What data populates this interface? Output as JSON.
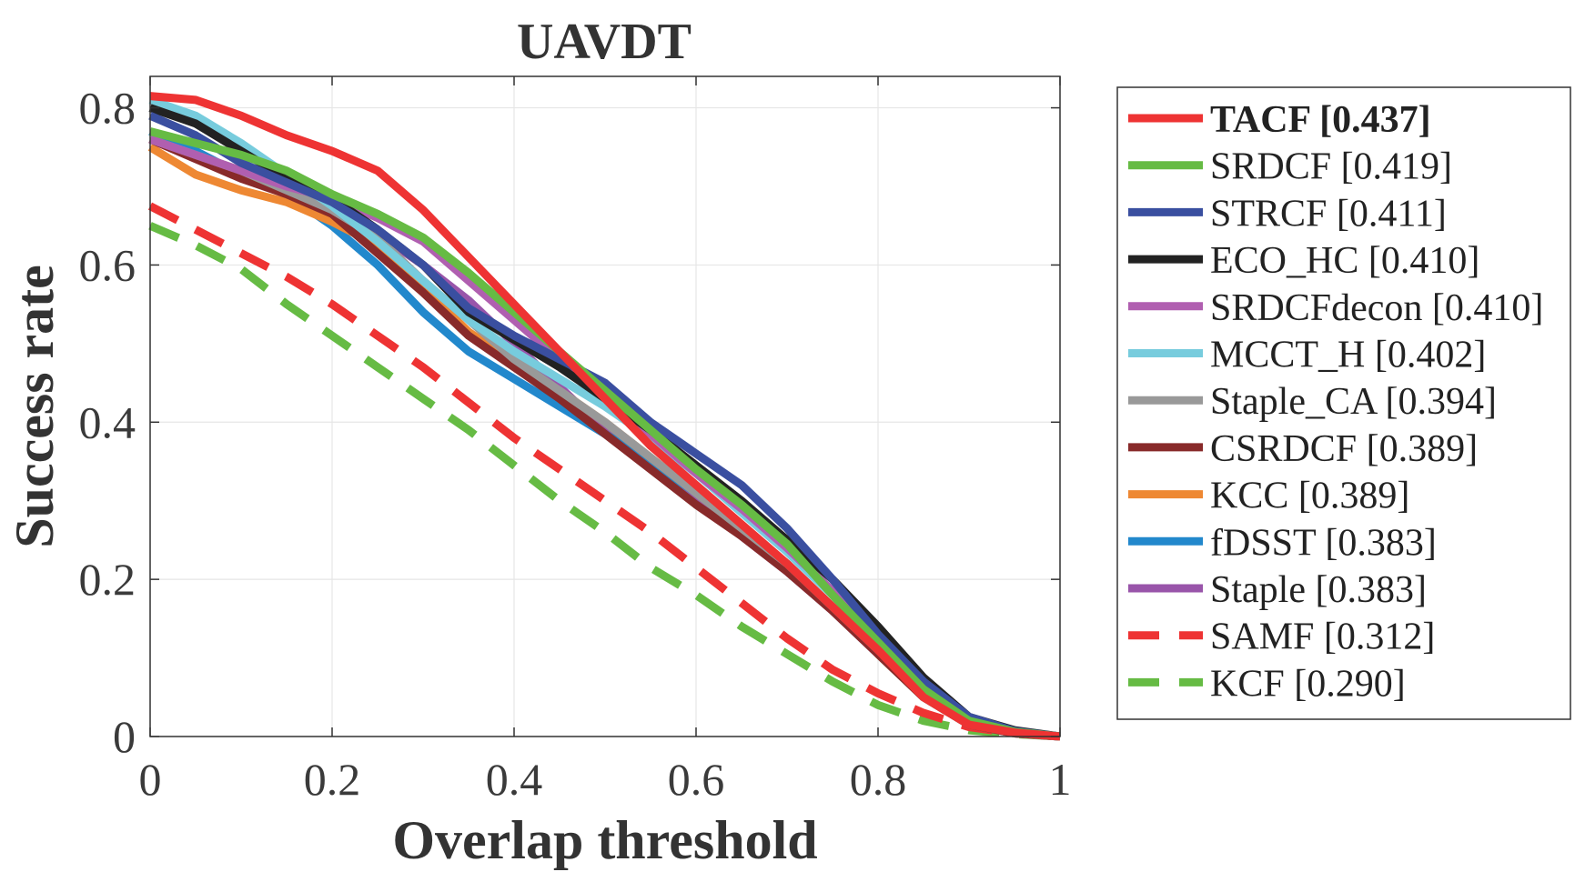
{
  "chart_data": {
    "type": "line",
    "title": "UAVDT",
    "xlabel": "Overlap threshold",
    "ylabel": "Success rate",
    "xlim": [
      0,
      1
    ],
    "ylim": [
      0,
      0.84
    ],
    "xticks": [
      0,
      0.2,
      0.4,
      0.6,
      0.8,
      1
    ],
    "xtick_labels": [
      "0",
      "0.2",
      "0.4",
      "0.6",
      "0.8",
      "1"
    ],
    "yticks": [
      0,
      0.2,
      0.4,
      0.6,
      0.8
    ],
    "ytick_labels": [
      "0",
      "0.2",
      "0.4",
      "0.6",
      "0.8"
    ],
    "grid": true,
    "legend_position": "outside-right",
    "x": [
      0,
      0.05,
      0.1,
      0.15,
      0.2,
      0.25,
      0.3,
      0.35,
      0.4,
      0.45,
      0.5,
      0.55,
      0.6,
      0.65,
      0.7,
      0.75,
      0.8,
      0.85,
      0.9,
      0.95,
      1
    ],
    "series": [
      {
        "name": "TACF",
        "label": "TACF [0.437]",
        "score": 0.437,
        "color": "#ee3333",
        "dash": false,
        "bold": true,
        "values": [
          0.815,
          0.81,
          0.79,
          0.765,
          0.745,
          0.72,
          0.67,
          0.61,
          0.55,
          0.49,
          0.43,
          0.37,
          0.32,
          0.27,
          0.22,
          0.165,
          0.11,
          0.05,
          0.015,
          0.005,
          0.0
        ]
      },
      {
        "name": "SRDCF",
        "label": "SRDCF [0.419]",
        "score": 0.419,
        "color": "#66bb44",
        "dash": false,
        "bold": false,
        "values": [
          0.77,
          0.755,
          0.74,
          0.72,
          0.69,
          0.665,
          0.635,
          0.59,
          0.54,
          0.49,
          0.44,
          0.39,
          0.34,
          0.295,
          0.245,
          0.18,
          0.12,
          0.06,
          0.02,
          0.006,
          0.0
        ]
      },
      {
        "name": "STRCF",
        "label": "STRCF [0.411]",
        "score": 0.411,
        "color": "#3a4fa0",
        "dash": false,
        "bold": false,
        "values": [
          0.79,
          0.765,
          0.73,
          0.705,
          0.68,
          0.645,
          0.6,
          0.545,
          0.51,
          0.48,
          0.45,
          0.4,
          0.36,
          0.32,
          0.265,
          0.2,
          0.13,
          0.07,
          0.025,
          0.007,
          0.0
        ]
      },
      {
        "name": "ECO_HC",
        "label": "ECO_HC [0.410]",
        "score": 0.41,
        "color": "#222222",
        "dash": false,
        "bold": false,
        "values": [
          0.8,
          0.78,
          0.745,
          0.71,
          0.685,
          0.645,
          0.6,
          0.54,
          0.505,
          0.47,
          0.43,
          0.39,
          0.345,
          0.3,
          0.25,
          0.2,
          0.14,
          0.075,
          0.025,
          0.008,
          0.0
        ]
      },
      {
        "name": "SRDCFdecon",
        "label": "SRDCFdecon [0.410]",
        "score": 0.41,
        "color": "#b05fb0",
        "dash": false,
        "bold": false,
        "values": [
          0.76,
          0.74,
          0.72,
          0.7,
          0.685,
          0.66,
          0.63,
          0.58,
          0.53,
          0.48,
          0.43,
          0.385,
          0.335,
          0.29,
          0.24,
          0.185,
          0.125,
          0.065,
          0.022,
          0.006,
          0.0
        ]
      },
      {
        "name": "MCCT_H",
        "label": "MCCT_H [0.402]",
        "score": 0.402,
        "color": "#77ccdd",
        "dash": false,
        "bold": false,
        "values": [
          0.81,
          0.79,
          0.755,
          0.715,
          0.675,
          0.63,
          0.58,
          0.53,
          0.49,
          0.455,
          0.42,
          0.38,
          0.335,
          0.285,
          0.235,
          0.18,
          0.12,
          0.06,
          0.02,
          0.006,
          0.0
        ]
      },
      {
        "name": "Staple_CA",
        "label": "Staple_CA [0.394]",
        "score": 0.394,
        "color": "#999999",
        "dash": false,
        "bold": false,
        "values": [
          0.76,
          0.74,
          0.72,
          0.695,
          0.67,
          0.635,
          0.58,
          0.53,
          0.48,
          0.44,
          0.4,
          0.355,
          0.31,
          0.265,
          0.22,
          0.165,
          0.11,
          0.055,
          0.018,
          0.005,
          0.0
        ]
      },
      {
        "name": "CSRDCF",
        "label": "CSRDCF [0.389]",
        "score": 0.389,
        "color": "#882a2a",
        "dash": false,
        "bold": false,
        "values": [
          0.76,
          0.735,
          0.71,
          0.69,
          0.665,
          0.615,
          0.565,
          0.51,
          0.47,
          0.43,
          0.385,
          0.34,
          0.295,
          0.255,
          0.21,
          0.16,
          0.105,
          0.05,
          0.015,
          0.004,
          0.0
        ]
      },
      {
        "name": "KCC",
        "label": "KCC [0.389]",
        "score": 0.389,
        "color": "#ee8833",
        "dash": false,
        "bold": false,
        "values": [
          0.75,
          0.715,
          0.695,
          0.68,
          0.655,
          0.625,
          0.57,
          0.515,
          0.475,
          0.44,
          0.4,
          0.355,
          0.31,
          0.265,
          0.22,
          0.165,
          0.105,
          0.05,
          0.015,
          0.004,
          0.0
        ]
      },
      {
        "name": "fDSST",
        "label": "fDSST [0.383]",
        "score": 0.383,
        "color": "#2288cc",
        "dash": false,
        "bold": false,
        "values": [
          0.77,
          0.745,
          0.715,
          0.69,
          0.65,
          0.6,
          0.54,
          0.49,
          0.455,
          0.42,
          0.385,
          0.35,
          0.31,
          0.265,
          0.22,
          0.165,
          0.105,
          0.05,
          0.015,
          0.004,
          0.0
        ]
      },
      {
        "name": "Staple",
        "label": "Staple [0.383]",
        "score": 0.383,
        "color": "#9955aa",
        "dash": false,
        "bold": false,
        "values": [
          0.76,
          0.735,
          0.715,
          0.695,
          0.67,
          0.64,
          0.6,
          0.555,
          0.5,
          0.445,
          0.39,
          0.345,
          0.3,
          0.255,
          0.21,
          0.16,
          0.105,
          0.05,
          0.015,
          0.004,
          0.0
        ]
      },
      {
        "name": "SAMF",
        "label": "SAMF [0.312]",
        "score": 0.312,
        "color": "#ee3333",
        "dash": true,
        "bold": false,
        "values": [
          0.675,
          0.645,
          0.615,
          0.585,
          0.55,
          0.51,
          0.47,
          0.425,
          0.38,
          0.34,
          0.3,
          0.26,
          0.215,
          0.17,
          0.125,
          0.085,
          0.055,
          0.03,
          0.012,
          0.004,
          0.0
        ]
      },
      {
        "name": "KCF",
        "label": "KCF [0.290]",
        "score": 0.29,
        "color": "#66bb44",
        "dash": true,
        "bold": false,
        "values": [
          0.65,
          0.625,
          0.595,
          0.55,
          0.51,
          0.47,
          0.43,
          0.39,
          0.345,
          0.3,
          0.26,
          0.215,
          0.18,
          0.14,
          0.105,
          0.07,
          0.04,
          0.02,
          0.008,
          0.003,
          0.0
        ]
      }
    ]
  }
}
